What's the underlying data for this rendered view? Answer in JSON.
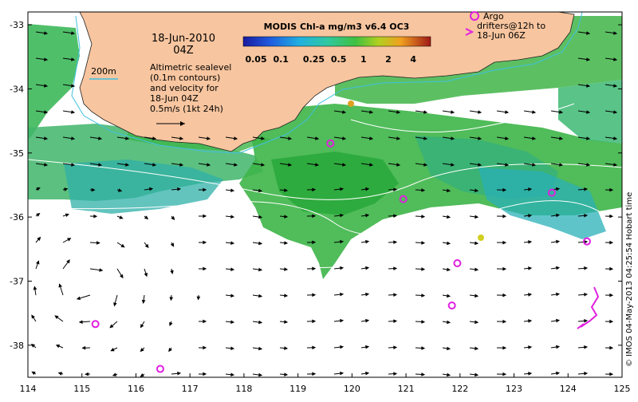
{
  "date_line": "18-Jun-2010",
  "time_line": "04Z",
  "colorbar": {
    "title": "MODIS Chl-a mg/m3 v6.4 OC3",
    "ticks": [
      "0.05",
      "0.1",
      "0.25",
      "0.5",
      "1",
      "2",
      "4"
    ]
  },
  "legend": {
    "isobath": "200m",
    "altimetry_lines": [
      "Altimetric sealevel",
      "(0.1m contours)",
      "and velocity for",
      "18-Jun 04Z",
      "0.5m/s (1kt 24h)"
    ],
    "argo_lines": [
      "Argo",
      "drifters@12h to",
      "18-Jun 06Z"
    ]
  },
  "x_axis_ticks": [
    "114",
    "115",
    "116",
    "117",
    "118",
    "119",
    "120",
    "121",
    "122",
    "123",
    "124",
    "125"
  ],
  "y_axis_ticks": [
    "-33",
    "-34",
    "-35",
    "-36",
    "-37",
    "-38"
  ],
  "credit": "© IMOS 04-May-2013 04:25:54 Hobart time",
  "colors": {
    "land": "#f7c59f",
    "argo_marker": "#e020e0",
    "contour": "#ffffff",
    "isobath": "#40c0e0",
    "chl_green": "#3cb043",
    "chl_teal": "#30b0a0"
  },
  "argo_floats": [
    {
      "lon": 119.6,
      "lat": -34.85
    },
    {
      "lon": 120.95,
      "lat": -35.72
    },
    {
      "lon": 123.7,
      "lat": -35.62
    },
    {
      "lon": 124.35,
      "lat": -36.38
    },
    {
      "lon": 121.95,
      "lat": -36.72
    },
    {
      "lon": 121.85,
      "lat": -37.38
    },
    {
      "lon": 115.25,
      "lat": -37.67
    },
    {
      "lon": 116.45,
      "lat": -38.37
    }
  ]
}
